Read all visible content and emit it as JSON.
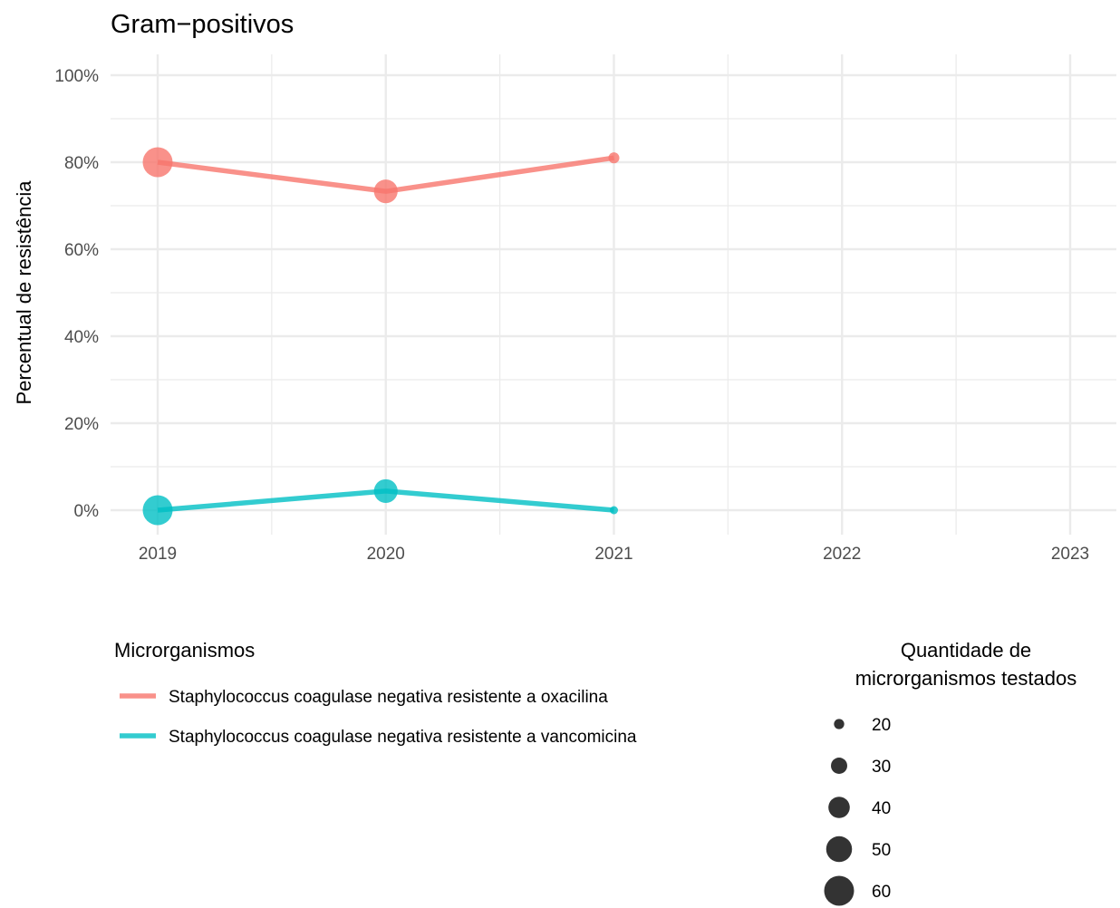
{
  "chart_data": {
    "type": "line",
    "title": "Gram−positivos",
    "xlabel": "",
    "ylabel": "Percentual de resistência",
    "x": [
      2019,
      2020,
      2021,
      2022,
      2023
    ],
    "x_tick_labels": [
      "2019",
      "2020",
      "2021",
      "2022",
      "2023"
    ],
    "xlim": [
      2018.8,
      2023.1
    ],
    "ylim": [
      0,
      100
    ],
    "y_ticks": [
      0,
      20,
      40,
      60,
      80,
      100
    ],
    "y_tick_labels": [
      "0%",
      "20%",
      "40%",
      "60%",
      "80%",
      "100%"
    ],
    "grid": true,
    "legend_position": "bottom",
    "color_legend_title": "Microrganismos",
    "size_legend_title": [
      "Quantidade de",
      "microrganismos testados"
    ],
    "series": [
      {
        "name": "Staphylococcus coagulase negativa resistente a  oxacilina",
        "color": "#F8766D",
        "points": [
          {
            "x": 2019,
            "y": 80,
            "n": 60
          },
          {
            "x": 2020,
            "y": 73.3,
            "n": 45
          },
          {
            "x": 2021,
            "y": 81,
            "n": 21
          }
        ]
      },
      {
        "name": "Staphylococcus coagulase negativa resistente a  vancomicina",
        "color": "#00BFC4",
        "points": [
          {
            "x": 2019,
            "y": 0,
            "n": 60
          },
          {
            "x": 2020,
            "y": 4.4,
            "n": 45
          },
          {
            "x": 2021,
            "y": 0,
            "n": 17
          }
        ]
      }
    ],
    "size_legend": [
      {
        "label": "20",
        "n": 20
      },
      {
        "label": "30",
        "n": 30
      },
      {
        "label": "40",
        "n": 40
      },
      {
        "label": "50",
        "n": 50
      },
      {
        "label": "60",
        "n": 60
      }
    ],
    "size_range": [
      17,
      60
    ]
  }
}
